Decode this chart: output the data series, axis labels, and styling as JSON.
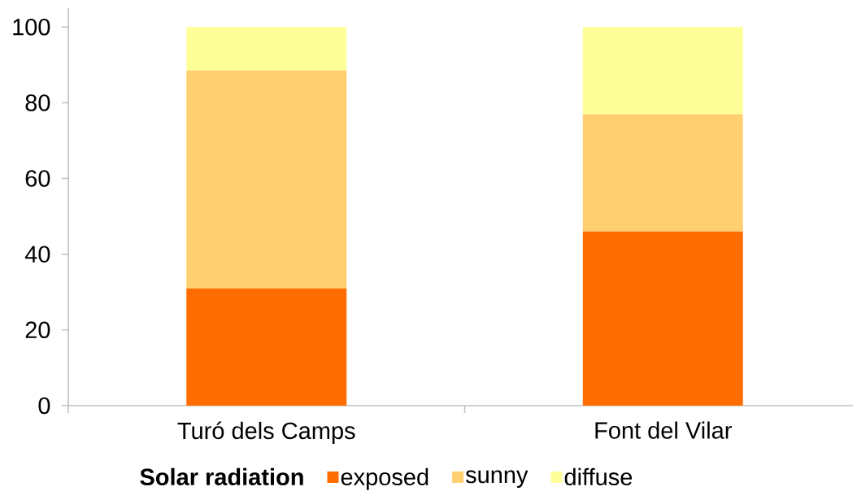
{
  "chart_data": {
    "type": "bar",
    "stacked": true,
    "categories": [
      "Turó dels Camps",
      "Font del Vilar"
    ],
    "series": [
      {
        "name": "exposed",
        "color": "#ff6d00",
        "values": [
          31,
          46
        ]
      },
      {
        "name": "sunny",
        "color": "#ffcf70",
        "values": [
          57.5,
          31
        ]
      },
      {
        "name": "diffuse",
        "color": "#ffff99",
        "values": [
          11.5,
          23
        ]
      }
    ],
    "ylim": [
      0,
      105
    ],
    "yticks": [
      0,
      20,
      40,
      60,
      80,
      100
    ],
    "legend": "bottom",
    "legend_title": "Solar radiation"
  }
}
